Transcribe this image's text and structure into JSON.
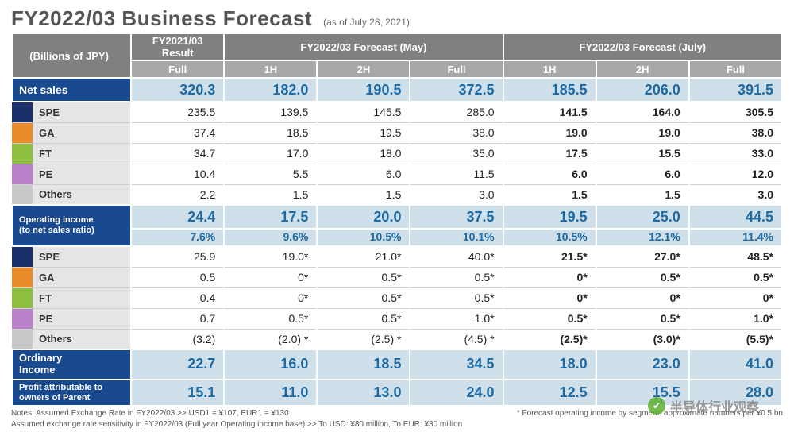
{
  "title": "FY2022/03 Business Forecast",
  "asof": "(as of July 28, 2021)",
  "units_label": "(Billions of JPY)",
  "group_headers": {
    "g1": "FY2021/03\nResult",
    "g2": "FY2022/03 Forecast (May)",
    "g3": "FY2022/03 Forecast (July)"
  },
  "sub_headers": [
    "Full",
    "1H",
    "2H",
    "Full",
    "1H",
    "2H",
    "Full"
  ],
  "rows": {
    "net_sales": {
      "label": "Net sales",
      "vals": [
        "320.3",
        "182.0",
        "190.5",
        "372.5",
        "185.5",
        "206.0",
        "391.5"
      ]
    },
    "segments1": [
      {
        "name": "SPE",
        "color": "#1b2f6b",
        "vals": [
          "235.5",
          "139.5",
          "145.5",
          "285.0",
          "141.5",
          "164.0",
          "305.5"
        ]
      },
      {
        "name": "GA",
        "color": "#e98b2a",
        "vals": [
          "37.4",
          "18.5",
          "19.5",
          "38.0",
          "19.0",
          "19.0",
          "38.0"
        ]
      },
      {
        "name": "FT",
        "color": "#8fbf3f",
        "vals": [
          "34.7",
          "17.0",
          "18.0",
          "35.0",
          "17.5",
          "15.5",
          "33.0"
        ]
      },
      {
        "name": "PE",
        "color": "#b97fc9",
        "vals": [
          "10.4",
          "5.5",
          "6.0",
          "11.5",
          "6.0",
          "6.0",
          "12.0"
        ]
      },
      {
        "name": "Others",
        "color": "#c8c8c8",
        "vals": [
          "2.2",
          "1.5",
          "1.5",
          "3.0",
          "1.5",
          "1.5",
          "3.0"
        ]
      }
    ],
    "op_income": {
      "label": "Operating income\n(to net sales ratio)",
      "vals": [
        "24.4",
        "17.5",
        "20.0",
        "37.5",
        "19.5",
        "25.0",
        "44.5"
      ],
      "ratios": [
        "7.6%",
        "9.6%",
        "10.5%",
        "10.1%",
        "10.5%",
        "12.1%",
        "11.4%"
      ]
    },
    "segments2": [
      {
        "name": "SPE",
        "color": "#1b2f6b",
        "vals": [
          "25.9",
          "19.0*",
          "21.0*",
          "40.0*",
          "21.5*",
          "27.0*",
          "48.5*"
        ]
      },
      {
        "name": "GA",
        "color": "#e98b2a",
        "vals": [
          "0.5",
          "0*",
          "0.5*",
          "0.5*",
          "0*",
          "0.5*",
          "0.5*"
        ]
      },
      {
        "name": "FT",
        "color": "#8fbf3f",
        "vals": [
          "0.4",
          "0*",
          "0.5*",
          "0.5*",
          "0*",
          "0*",
          "0*"
        ]
      },
      {
        "name": "PE",
        "color": "#b97fc9",
        "vals": [
          "0.7",
          "0.5*",
          "0.5*",
          "1.0*",
          "0.5*",
          "0.5*",
          "1.0*"
        ]
      },
      {
        "name": "Others",
        "color": "#c8c8c8",
        "vals": [
          "(3.2)",
          "(2.0) *",
          "(2.5) *",
          "(4.5) *",
          "(2.5)*",
          "(3.0)*",
          "(5.5)*"
        ]
      }
    ],
    "ordinary": {
      "label": "Ordinary\nIncome",
      "vals": [
        "22.7",
        "16.0",
        "18.5",
        "34.5",
        "18.0",
        "23.0",
        "41.0"
      ]
    },
    "profit": {
      "label": "Profit attributable to\nowners of Parent",
      "vals": [
        "15.1",
        "11.0",
        "13.0",
        "24.0",
        "12.5",
        "15.5",
        "28.0"
      ]
    }
  },
  "notes": {
    "left1": "Notes: Assumed Exchange Rate in FY2022/03 >>  USD1 = ¥107,  EUR1 = ¥130",
    "right1": "* Forecast operating income by segment: approximate numbers per ¥0.5 bn",
    "left2": "Assumed exchange rate sensitivity in FY2022/03 (Full year Operating income base) >> To USD: ¥80 million, To EUR: ¥30 million"
  },
  "watermark": "半导体行业观察",
  "bold_col_indices": [
    4,
    5,
    6
  ],
  "styles": {
    "header_bg": "#808080",
    "subheader_bg": "#a8a8a8",
    "section_bg": "#19498f",
    "highlight_bg": "#cfe0ea",
    "highlight_fg": "#1d6aa5"
  }
}
